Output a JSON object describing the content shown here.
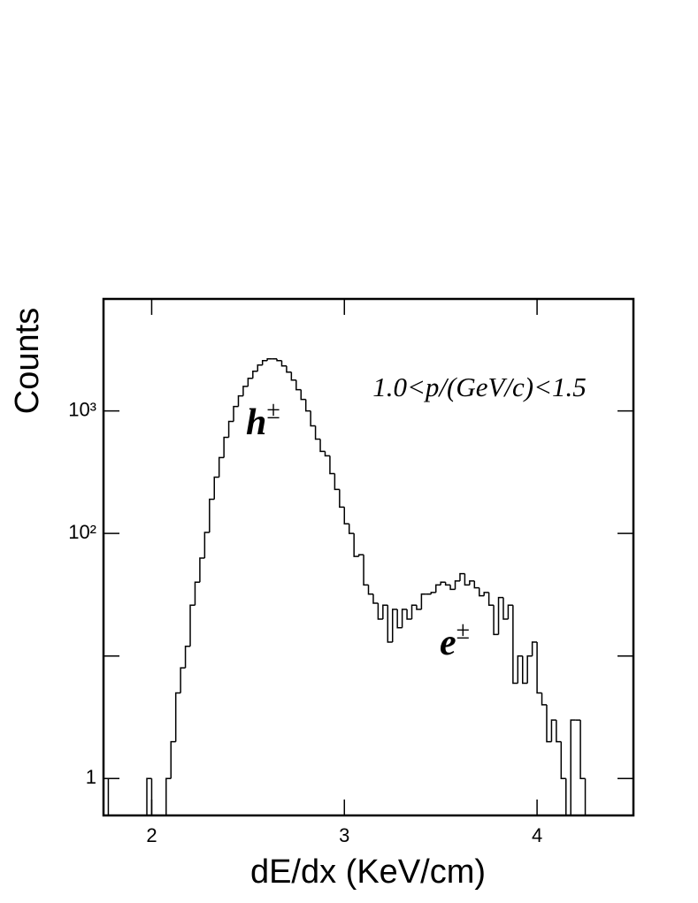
{
  "chart_data": {
    "type": "histogram",
    "x_label": "dE/dx (KeV/cm)",
    "y_label": "Counts",
    "annotation": "1.0<p/(GeV/c)<1.5",
    "peak_labels": [
      {
        "text": "h",
        "superscript": "±"
      },
      {
        "text": "e",
        "superscript": "±"
      }
    ],
    "bins": [
      1.75,
      1.775,
      1.8,
      1.825,
      1.85,
      1.875,
      1.9,
      1.925,
      1.95,
      1.975,
      2.0,
      2.025,
      2.05,
      2.075,
      2.1,
      2.125,
      2.15,
      2.175,
      2.2,
      2.225,
      2.25,
      2.275,
      2.3,
      2.325,
      2.35,
      2.375,
      2.4,
      2.425,
      2.45,
      2.475,
      2.5,
      2.525,
      2.55,
      2.575,
      2.6,
      2.625,
      2.65,
      2.675,
      2.7,
      2.725,
      2.75,
      2.775,
      2.8,
      2.825,
      2.85,
      2.875,
      2.9,
      2.925,
      2.95,
      2.975,
      3.0,
      3.025,
      3.05,
      3.075,
      3.1,
      3.125,
      3.15,
      3.175,
      3.2,
      3.225,
      3.25,
      3.275,
      3.3,
      3.325,
      3.35,
      3.375,
      3.4,
      3.425,
      3.45,
      3.475,
      3.5,
      3.525,
      3.55,
      3.575,
      3.6,
      3.625,
      3.65,
      3.675,
      3.7,
      3.725,
      3.75,
      3.775,
      3.8,
      3.825,
      3.85,
      3.875,
      3.9,
      3.925,
      3.95,
      3.975,
      4.0,
      4.025,
      4.05,
      4.075,
      4.1,
      4.125,
      4.15,
      4.175,
      4.2,
      4.225,
      4.25
    ],
    "values": [
      1,
      0,
      0,
      0,
      0,
      0,
      0,
      0,
      0,
      1,
      0,
      0,
      0,
      1,
      2,
      5,
      8,
      12,
      26,
      40,
      63,
      102,
      190,
      288,
      416,
      608,
      820,
      1086,
      1325,
      1585,
      1845,
      2107,
      2366,
      2572,
      2660,
      2660,
      2572,
      2328,
      2074,
      1786,
      1489,
      1241,
      1000,
      755,
      589,
      467,
      430,
      308,
      229,
      164,
      120,
      100,
      65,
      67,
      38,
      32,
      27,
      20,
      26,
      13,
      24,
      17,
      24,
      20,
      26,
      24,
      32,
      32,
      33,
      38,
      40,
      38,
      35,
      41,
      47,
      38,
      41,
      36,
      31,
      33,
      26,
      15,
      30,
      20,
      26,
      6,
      10,
      6,
      10,
      13,
      5,
      4,
      2,
      3,
      2,
      1,
      0,
      3,
      3,
      1
    ],
    "color": "#000000",
    "xlim": [
      1.75,
      4.5
    ],
    "xticks": [
      2,
      3,
      4
    ],
    "ylim": [
      0.5,
      8200
    ],
    "log_y": true,
    "yticks": [
      1,
      {
        "value": 10,
        "label": null
      },
      {
        "value": 100,
        "label": "10²"
      },
      {
        "value": 1000,
        "label": "10³"
      }
    ]
  }
}
